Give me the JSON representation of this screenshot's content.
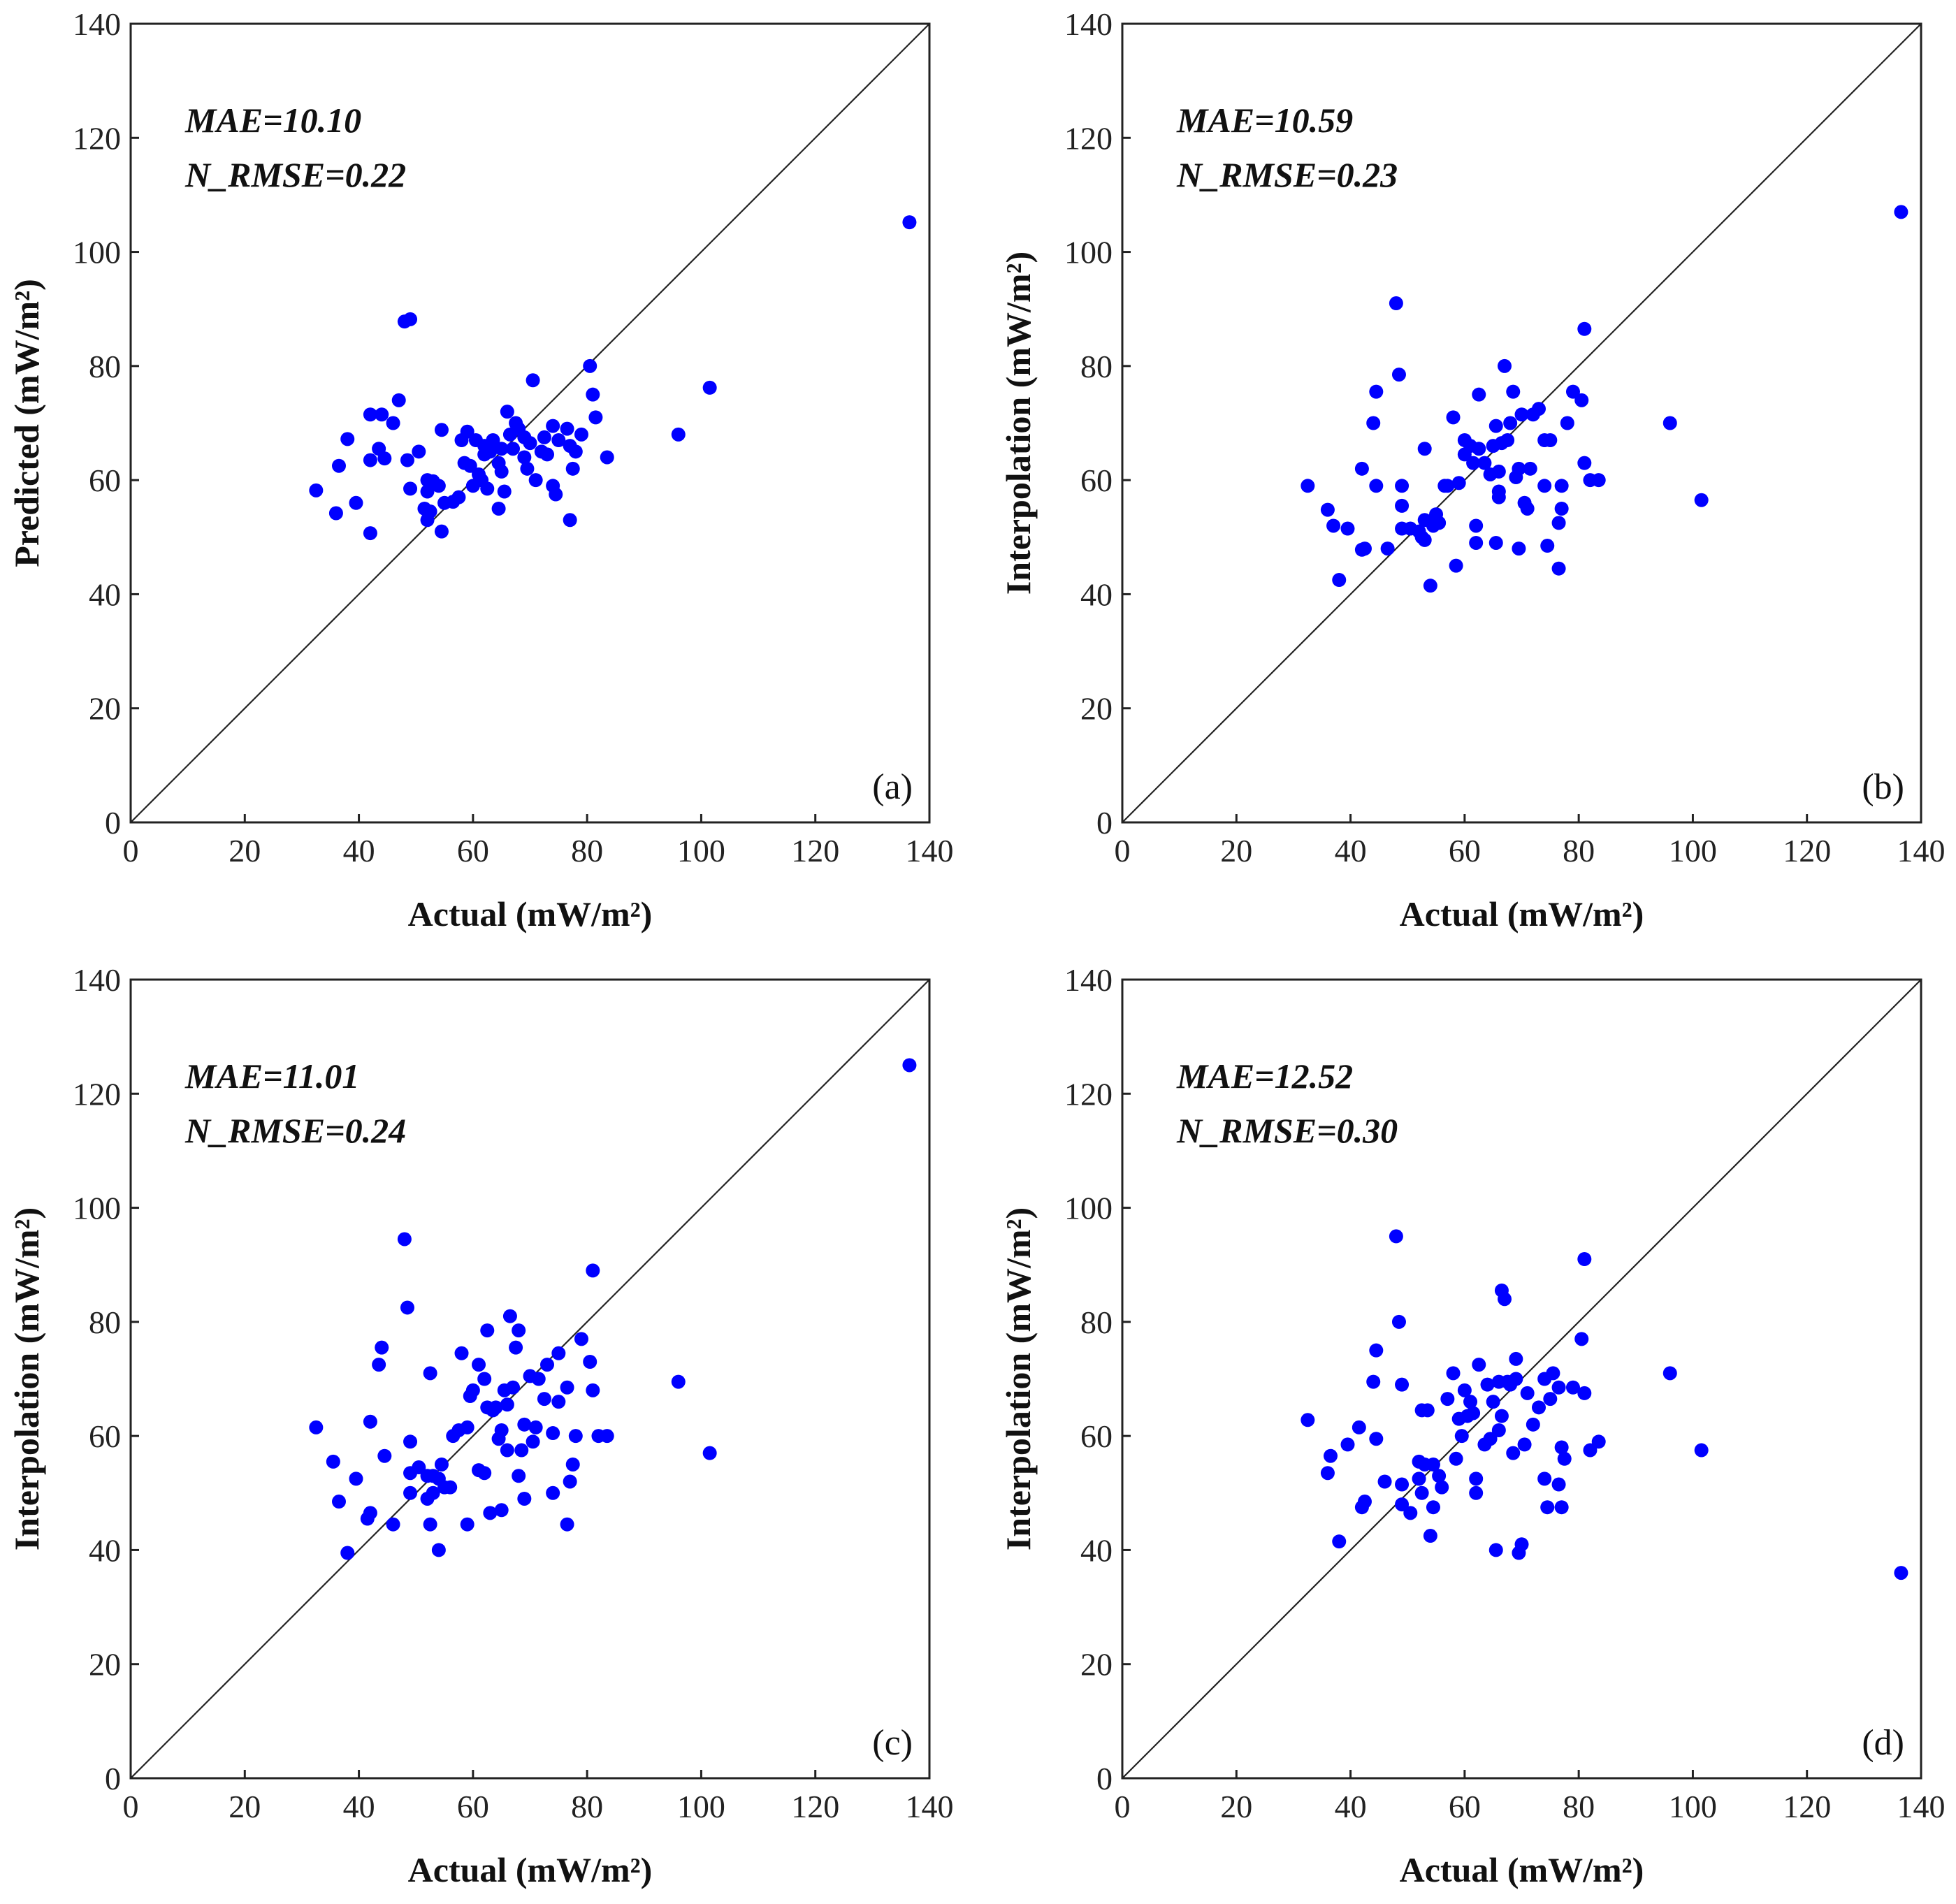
{
  "chart_data": [
    {
      "type": "scatter",
      "panel_label": "(a)",
      "xlabel": "Actual (mW/m²)",
      "ylabel": "Predicted (mW/m²)",
      "xlim": [
        0,
        140
      ],
      "ylim": [
        0,
        140
      ],
      "x_ticks": [
        "0",
        "20",
        "40",
        "60",
        "80",
        "100",
        "120",
        "140"
      ],
      "y_ticks": [
        "0",
        "20",
        "40",
        "60",
        "80",
        "100",
        "120",
        "140"
      ],
      "grid": false,
      "reference_line": "y = x",
      "point_color": "#0000ff",
      "annotations": [
        "MAE=10.10",
        "N_RMSE=0.22"
      ],
      "points": [
        [
          32.5,
          58.2
        ],
        [
          36,
          54.2
        ],
        [
          36.5,
          62.5
        ],
        [
          38,
          67.2
        ],
        [
          39.5,
          56
        ],
        [
          42,
          71.5
        ],
        [
          42,
          63.5
        ],
        [
          42,
          50.7
        ],
        [
          43.5,
          65.5
        ],
        [
          44,
          71.5
        ],
        [
          44.5,
          63.8
        ],
        [
          46,
          70
        ],
        [
          47,
          74
        ],
        [
          48,
          87.8
        ],
        [
          49,
          88.2
        ],
        [
          48.5,
          63.5
        ],
        [
          49,
          58.5
        ],
        [
          50.5,
          65
        ],
        [
          51.5,
          55
        ],
        [
          52,
          60
        ],
        [
          52,
          58
        ],
        [
          52,
          53
        ],
        [
          52.5,
          54.5
        ],
        [
          53,
          59.8
        ],
        [
          54,
          59
        ],
        [
          54.5,
          68.8
        ],
        [
          54.5,
          51
        ],
        [
          55,
          56
        ],
        [
          56.5,
          56.2
        ],
        [
          57.5,
          57
        ],
        [
          58,
          67
        ],
        [
          58.5,
          63
        ],
        [
          59,
          68.5
        ],
        [
          59.5,
          62.5
        ],
        [
          60,
          59
        ],
        [
          60.5,
          67
        ],
        [
          61,
          61
        ],
        [
          61.5,
          60
        ],
        [
          62,
          66
        ],
        [
          62,
          64.5
        ],
        [
          62.5,
          58.5
        ],
        [
          63,
          65
        ],
        [
          63.5,
          67
        ],
        [
          64.5,
          55
        ],
        [
          64.5,
          63
        ],
        [
          65,
          61.5
        ],
        [
          65,
          65.5
        ],
        [
          65.5,
          58
        ],
        [
          66,
          72
        ],
        [
          66.5,
          68
        ],
        [
          67,
          65.5
        ],
        [
          67.5,
          70
        ],
        [
          68,
          69
        ],
        [
          69,
          64
        ],
        [
          69,
          67.5
        ],
        [
          69.5,
          62
        ],
        [
          70,
          66.5
        ],
        [
          70.5,
          77.5
        ],
        [
          71,
          60
        ],
        [
          72,
          65
        ],
        [
          72.5,
          67.5
        ],
        [
          73,
          64.5
        ],
        [
          74,
          59
        ],
        [
          74,
          69.5
        ],
        [
          74.5,
          57.5
        ],
        [
          75,
          67
        ],
        [
          76.5,
          69
        ],
        [
          77,
          66
        ],
        [
          77,
          53
        ],
        [
          77.5,
          62
        ],
        [
          78,
          65
        ],
        [
          79,
          68
        ],
        [
          80.5,
          80
        ],
        [
          81,
          75
        ],
        [
          81.5,
          71
        ],
        [
          83.5,
          64
        ],
        [
          96,
          68
        ],
        [
          101.5,
          76.2
        ],
        [
          136.5,
          105.2
        ]
      ]
    },
    {
      "type": "scatter",
      "panel_label": "(b)",
      "xlabel": "Actual (mW/m²)",
      "ylabel": "Interpolation (mW/m²)",
      "xlim": [
        0,
        140
      ],
      "ylim": [
        0,
        140
      ],
      "x_ticks": [
        "0",
        "20",
        "40",
        "60",
        "80",
        "100",
        "120",
        "140"
      ],
      "y_ticks": [
        "0",
        "20",
        "40",
        "60",
        "80",
        "100",
        "120",
        "140"
      ],
      "grid": false,
      "reference_line": "y = x",
      "point_color": "#0000ff",
      "annotations": [
        "MAE=10.59",
        "N_RMSE=0.23"
      ],
      "points": [
        [
          32.5,
          59
        ],
        [
          36,
          54.8
        ],
        [
          37,
          52
        ],
        [
          38,
          42.5
        ],
        [
          39.5,
          51.5
        ],
        [
          42,
          62
        ],
        [
          42,
          47.8
        ],
        [
          42.5,
          48
        ],
        [
          44,
          70
        ],
        [
          44.5,
          75.5
        ],
        [
          44.5,
          59
        ],
        [
          46.5,
          48
        ],
        [
          48,
          91
        ],
        [
          48.5,
          78.5
        ],
        [
          49,
          59
        ],
        [
          49,
          55.5
        ],
        [
          49,
          51.5
        ],
        [
          50.5,
          51.5
        ],
        [
          52,
          51
        ],
        [
          52.5,
          50
        ],
        [
          53,
          65.5
        ],
        [
          53,
          53
        ],
        [
          53,
          49.5
        ],
        [
          54,
          41.5
        ],
        [
          54.5,
          52
        ],
        [
          55,
          54
        ],
        [
          55.5,
          52.5
        ],
        [
          56.5,
          59
        ],
        [
          57,
          59
        ],
        [
          58,
          71
        ],
        [
          58.5,
          45
        ],
        [
          59,
          59.5
        ],
        [
          60,
          67
        ],
        [
          60,
          64.5
        ],
        [
          61,
          66
        ],
        [
          61.5,
          63
        ],
        [
          62,
          52
        ],
        [
          62,
          49
        ],
        [
          62.5,
          65.5
        ],
        [
          62.5,
          75
        ],
        [
          63.5,
          63
        ],
        [
          64.5,
          61
        ],
        [
          65,
          66
        ],
        [
          65.5,
          49
        ],
        [
          65.5,
          69.5
        ],
        [
          66,
          58
        ],
        [
          66,
          61.5
        ],
        [
          66,
          57
        ],
        [
          66.5,
          66.5
        ],
        [
          67,
          80
        ],
        [
          67.5,
          67
        ],
        [
          68,
          70
        ],
        [
          68.5,
          75.5
        ],
        [
          69,
          60.5
        ],
        [
          69.5,
          62
        ],
        [
          69.5,
          48
        ],
        [
          70,
          71.5
        ],
        [
          70.5,
          56
        ],
        [
          71,
          55
        ],
        [
          71.5,
          62
        ],
        [
          72,
          71.5
        ],
        [
          73,
          72.5
        ],
        [
          74,
          67
        ],
        [
          74,
          59
        ],
        [
          74.5,
          48.5
        ],
        [
          75,
          67
        ],
        [
          76.5,
          44.5
        ],
        [
          76.5,
          52.5
        ],
        [
          77,
          59
        ],
        [
          77,
          55
        ],
        [
          78,
          70
        ],
        [
          79,
          75.5
        ],
        [
          80.5,
          74
        ],
        [
          81,
          86.5
        ],
        [
          81,
          63
        ],
        [
          82,
          60
        ],
        [
          83.5,
          60
        ],
        [
          96,
          70
        ],
        [
          101.5,
          56.5
        ],
        [
          136.5,
          107
        ]
      ]
    },
    {
      "type": "scatter",
      "panel_label": "(c)",
      "xlabel": "Actual (mW/m²)",
      "ylabel": "Interpolation (mW/m²)",
      "xlim": [
        0,
        140
      ],
      "ylim": [
        0,
        140
      ],
      "x_ticks": [
        "0",
        "20",
        "40",
        "60",
        "80",
        "100",
        "120",
        "140"
      ],
      "y_ticks": [
        "0",
        "20",
        "40",
        "60",
        "80",
        "100",
        "120",
        "140"
      ],
      "grid": false,
      "reference_line": "y = x",
      "point_color": "#0000ff",
      "annotations": [
        "MAE=11.01",
        "N_RMSE=0.24"
      ],
      "points": [
        [
          32.5,
          61.5
        ],
        [
          35.5,
          55.5
        ],
        [
          36.5,
          48.5
        ],
        [
          38,
          39.5
        ],
        [
          39.5,
          52.5
        ],
        [
          41.5,
          45.5
        ],
        [
          42,
          46.5
        ],
        [
          42,
          62.5
        ],
        [
          43.5,
          72.5
        ],
        [
          44,
          75.5
        ],
        [
          44.5,
          56.5
        ],
        [
          46,
          44.5
        ],
        [
          48,
          94.5
        ],
        [
          48.5,
          82.5
        ],
        [
          49,
          59
        ],
        [
          49,
          53.5
        ],
        [
          49,
          50
        ],
        [
          50.5,
          54.5
        ],
        [
          52,
          53
        ],
        [
          52,
          49
        ],
        [
          52.5,
          71
        ],
        [
          52.5,
          44.5
        ],
        [
          53,
          53
        ],
        [
          53,
          50
        ],
        [
          54,
          40
        ],
        [
          54,
          52.5
        ],
        [
          54.5,
          55
        ],
        [
          55,
          51
        ],
        [
          56,
          51
        ],
        [
          56.5,
          60
        ],
        [
          57.5,
          61
        ],
        [
          58,
          74.5
        ],
        [
          59,
          44.5
        ],
        [
          59,
          61.5
        ],
        [
          59.5,
          67
        ],
        [
          60,
          68
        ],
        [
          61,
          72.5
        ],
        [
          61,
          54
        ],
        [
          62,
          53.5
        ],
        [
          62,
          70
        ],
        [
          62.5,
          65
        ],
        [
          62.5,
          78.5
        ],
        [
          63,
          46.5
        ],
        [
          63.5,
          64.5
        ],
        [
          64,
          65
        ],
        [
          64.5,
          59.5
        ],
        [
          65,
          61
        ],
        [
          65,
          47
        ],
        [
          65.5,
          68
        ],
        [
          66,
          65.5
        ],
        [
          66,
          57.5
        ],
        [
          66.5,
          81
        ],
        [
          67,
          68.5
        ],
        [
          67.5,
          75.5
        ],
        [
          68,
          78.5
        ],
        [
          68,
          53
        ],
        [
          68.5,
          57.5
        ],
        [
          69,
          62
        ],
        [
          69,
          49
        ],
        [
          70,
          70.5
        ],
        [
          70.5,
          59
        ],
        [
          71,
          61.5
        ],
        [
          71.5,
          70
        ],
        [
          72.5,
          66.5
        ],
        [
          73,
          72.5
        ],
        [
          74,
          60.5
        ],
        [
          74,
          50
        ],
        [
          75,
          74.5
        ],
        [
          75,
          66
        ],
        [
          76.5,
          44.5
        ],
        [
          76.5,
          68.5
        ],
        [
          77,
          52
        ],
        [
          77.5,
          55
        ],
        [
          78,
          60
        ],
        [
          79,
          77
        ],
        [
          80.5,
          73
        ],
        [
          81,
          89
        ],
        [
          81,
          68
        ],
        [
          82,
          60
        ],
        [
          83.5,
          60
        ],
        [
          96,
          69.5
        ],
        [
          101.5,
          57
        ],
        [
          136.5,
          125
        ]
      ]
    },
    {
      "type": "scatter",
      "panel_label": "(d)",
      "xlabel": "Actual (mW/m²)",
      "ylabel": "Interpolation (mW/m²)",
      "xlim": [
        0,
        140
      ],
      "ylim": [
        0,
        140
      ],
      "x_ticks": [
        "0",
        "20",
        "40",
        "60",
        "80",
        "100",
        "120",
        "140"
      ],
      "y_ticks": [
        "0",
        "20",
        "40",
        "60",
        "80",
        "100",
        "120",
        "140"
      ],
      "grid": false,
      "reference_line": "y = x",
      "point_color": "#0000ff",
      "annotations": [
        "MAE=12.52",
        "N_RMSE=0.30"
      ],
      "points": [
        [
          32.5,
          62.8
        ],
        [
          36,
          53.5
        ],
        [
          36.5,
          56.5
        ],
        [
          38,
          41.5
        ],
        [
          39.5,
          58.5
        ],
        [
          41.5,
          61.5
        ],
        [
          42,
          47.5
        ],
        [
          42.5,
          48.5
        ],
        [
          44,
          69.5
        ],
        [
          44.5,
          75
        ],
        [
          44.5,
          59.5
        ],
        [
          46,
          52
        ],
        [
          48,
          95
        ],
        [
          48.5,
          80
        ],
        [
          49,
          69
        ],
        [
          49,
          51.5
        ],
        [
          49,
          48
        ],
        [
          50.5,
          46.5
        ],
        [
          52,
          55.5
        ],
        [
          52,
          52.5
        ],
        [
          52.5,
          64.5
        ],
        [
          52.5,
          50
        ],
        [
          53,
          55
        ],
        [
          53.5,
          64.5
        ],
        [
          54,
          42.5
        ],
        [
          54.5,
          47.5
        ],
        [
          54.5,
          55
        ],
        [
          55.5,
          53
        ],
        [
          56,
          51
        ],
        [
          57,
          66.5
        ],
        [
          58,
          71
        ],
        [
          58.5,
          56
        ],
        [
          59,
          63
        ],
        [
          59.5,
          60
        ],
        [
          60,
          68
        ],
        [
          60.5,
          63.5
        ],
        [
          61,
          66
        ],
        [
          61.5,
          64
        ],
        [
          62,
          52.5
        ],
        [
          62,
          50
        ],
        [
          62.5,
          72.5
        ],
        [
          63.5,
          58.5
        ],
        [
          64,
          69
        ],
        [
          64.5,
          59.5
        ],
        [
          65,
          66
        ],
        [
          65.5,
          40
        ],
        [
          66,
          69.5
        ],
        [
          66,
          61
        ],
        [
          66.5,
          85.5
        ],
        [
          66.5,
          63.5
        ],
        [
          67,
          84
        ],
        [
          67.5,
          69.5
        ],
        [
          68,
          69
        ],
        [
          68.5,
          57
        ],
        [
          69,
          70
        ],
        [
          69,
          73.5
        ],
        [
          69.5,
          39.5
        ],
        [
          70,
          41
        ],
        [
          70.5,
          58.5
        ],
        [
          71,
          67.5
        ],
        [
          72,
          62
        ],
        [
          73,
          65
        ],
        [
          74,
          70
        ],
        [
          74,
          52.5
        ],
        [
          74.5,
          47.5
        ],
        [
          75,
          66.5
        ],
        [
          75.5,
          71
        ],
        [
          76.5,
          68.5
        ],
        [
          76.5,
          51.5
        ],
        [
          77,
          47.5
        ],
        [
          77,
          58
        ],
        [
          77.5,
          56
        ],
        [
          79,
          68.5
        ],
        [
          80.5,
          77
        ],
        [
          81,
          91
        ],
        [
          81,
          67.5
        ],
        [
          82,
          57.5
        ],
        [
          83.5,
          59
        ],
        [
          96,
          71
        ],
        [
          101.5,
          57.5
        ],
        [
          136.5,
          36
        ]
      ]
    }
  ]
}
